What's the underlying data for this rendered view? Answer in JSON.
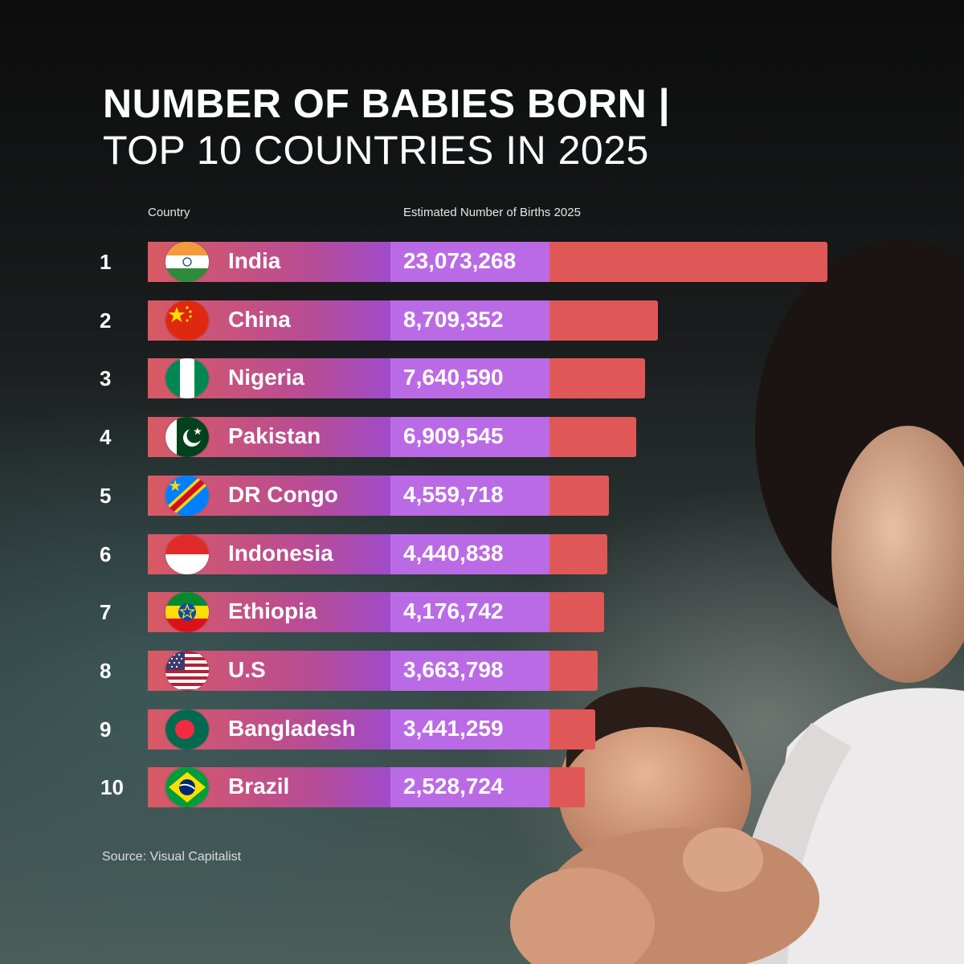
{
  "title_line1": "NUMBER OF BABIES BORN  |",
  "title_line2": "TOP 10 COUNTRIES IN 2025",
  "column_headers": {
    "country": "Country",
    "births": "Estimated Number of Births 2025"
  },
  "source": "Source: Visual Capitalist",
  "colors": {
    "bar": "#e05757",
    "pill_start": "#d85a64",
    "pill_end": "#b86ee2",
    "value_box": "#bb6ae6"
  },
  "chart_data": {
    "type": "bar",
    "orientation": "horizontal",
    "title": "NUMBER OF BABIES BORN | TOP 10 COUNTRIES IN 2025",
    "xlabel": "Estimated Number of Births 2025",
    "ylabel": "Country",
    "grid": false,
    "ranks": [
      "1",
      "2",
      "3",
      "4",
      "5",
      "6",
      "7",
      "8",
      "9",
      "10"
    ],
    "categories": [
      "India",
      "China",
      "Nigeria",
      "Pakistan",
      "DR Congo",
      "Indonesia",
      "Ethiopia",
      "U.S",
      "Bangladesh",
      "Brazil"
    ],
    "values": [
      23073268,
      8709352,
      7640590,
      6909545,
      4559718,
      4440838,
      4176742,
      3663798,
      3441259,
      2528724
    ],
    "value_labels": [
      "23,073,268",
      "8,709,352",
      "7,640,590",
      "6,909,545",
      "4,559,718",
      "4,440,838",
      "4,176,742",
      "3,663,798",
      "3,441,259",
      "2,528,724"
    ],
    "flag_icons": [
      "india-flag-icon",
      "china-flag-icon",
      "nigeria-flag-icon",
      "pakistan-flag-icon",
      "dr-congo-flag-icon",
      "indonesia-flag-icon",
      "ethiopia-flag-icon",
      "us-flag-icon",
      "bangladesh-flag-icon",
      "brazil-flag-icon"
    ]
  }
}
